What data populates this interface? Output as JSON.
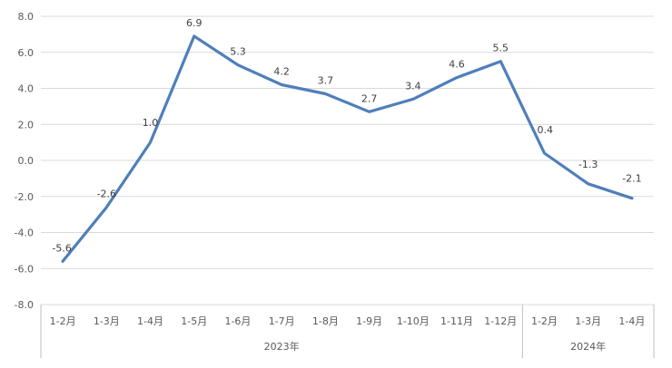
{
  "chart_data": {
    "type": "line",
    "title": "",
    "xlabel": "",
    "ylabel": "",
    "ylim": [
      -8.0,
      8.0
    ],
    "yticks": [
      "8.0",
      "6.0",
      "4.0",
      "2.0",
      "0.0",
      "-2.0",
      "-4.0",
      "-6.0",
      "-8.0"
    ],
    "ytick_values": [
      8,
      6,
      4,
      2,
      0,
      -2,
      -4,
      -6,
      -8
    ],
    "grid": true,
    "legend": "none",
    "categories": [
      "1-2月",
      "1-3月",
      "1-4月",
      "1-5月",
      "1-6月",
      "1-7月",
      "1-8月",
      "1-9月",
      "1-10月",
      "1-11月",
      "1-12月",
      "1-2月",
      "1-3月",
      "1-4月"
    ],
    "groups": [
      {
        "label": "2023年",
        "count": 11
      },
      {
        "label": "2024年",
        "count": 3
      }
    ],
    "series": [
      {
        "color": "#4f7fba",
        "values": [
          -5.6,
          -2.6,
          1.0,
          6.9,
          5.3,
          4.2,
          3.7,
          2.7,
          3.4,
          4.6,
          5.5,
          0.4,
          -1.3,
          -2.1
        ],
        "labels": [
          "-5.6",
          "-2.6",
          "1.0",
          "6.9",
          "5.3",
          "4.2",
          "3.7",
          "2.7",
          "3.4",
          "4.6",
          "5.5",
          "0.4",
          "-1.3",
          "-2.1"
        ]
      }
    ]
  }
}
